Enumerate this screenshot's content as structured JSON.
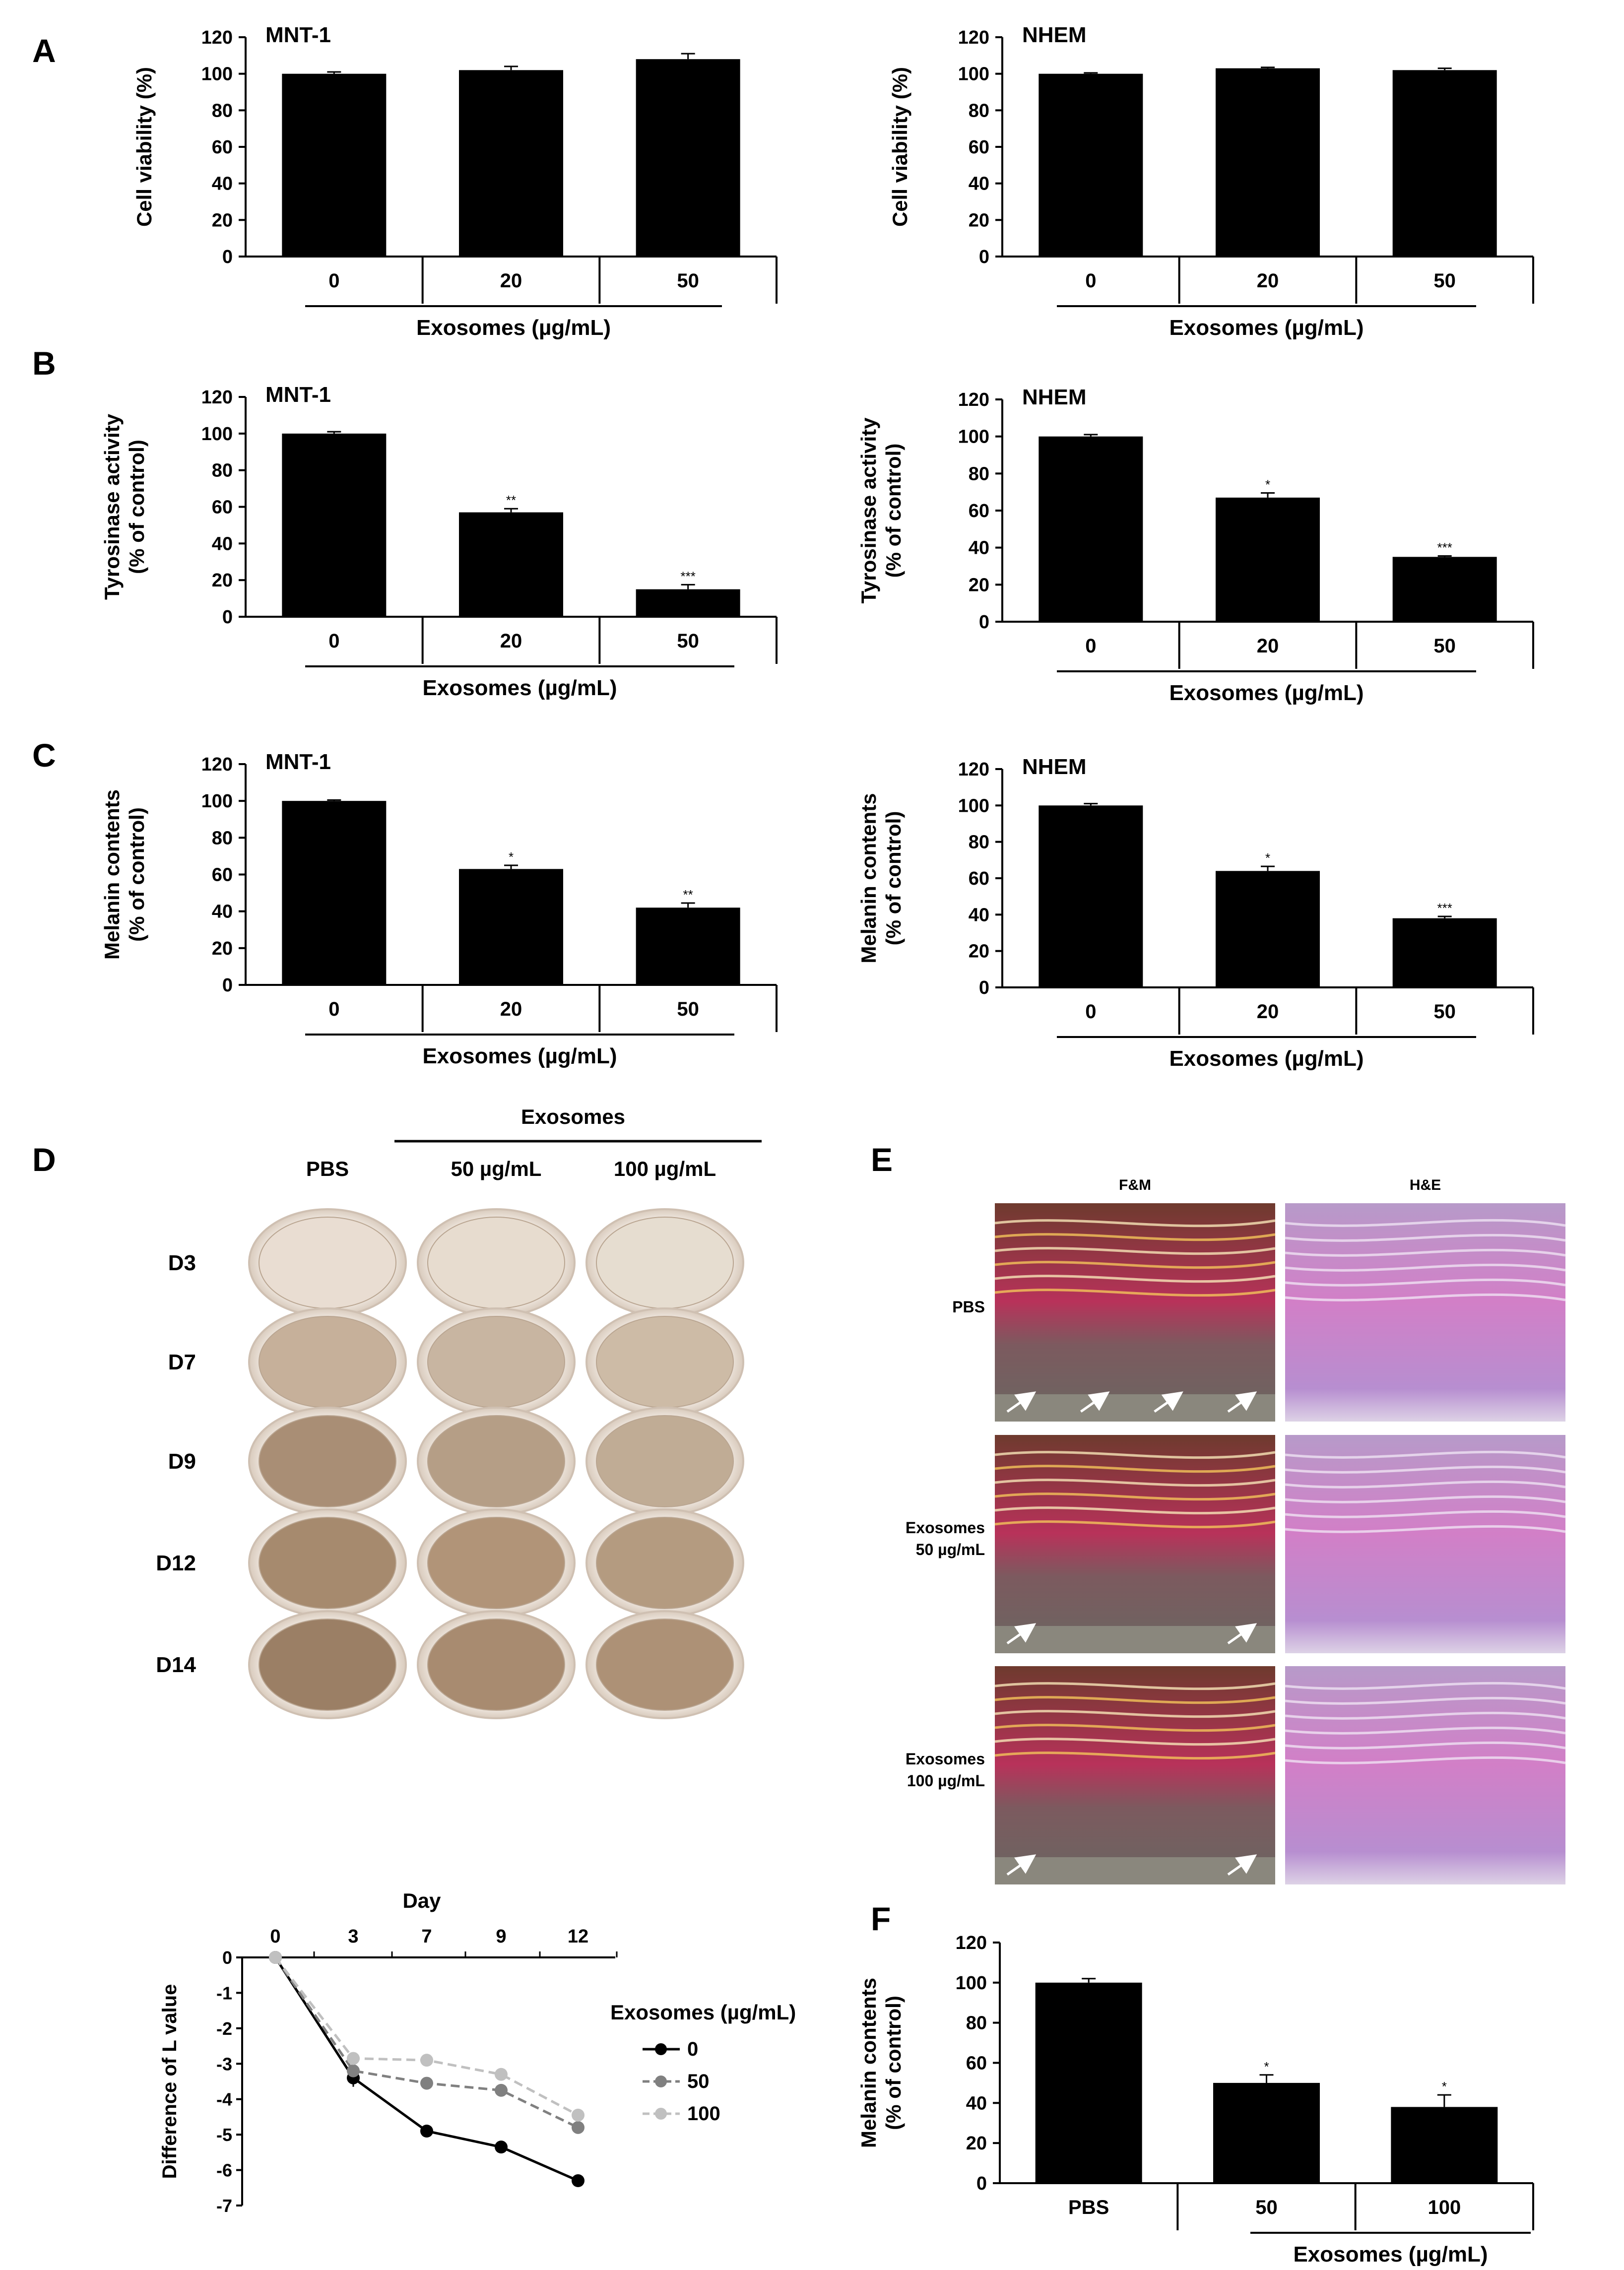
{
  "chart_data": [
    {
      "panel": "A",
      "type": "bar",
      "title": "MNT-1",
      "categories": [
        "0",
        "20",
        "50"
      ],
      "values": [
        100,
        102,
        108
      ],
      "errors": [
        1,
        2,
        3
      ],
      "sig": [
        "",
        "",
        ""
      ],
      "xlabel": "Exosomes (µg/mL)",
      "ylabel": [
        "Cell viability (%)"
      ],
      "ylim": [
        0,
        120
      ],
      "yticks": [
        0,
        20,
        40,
        60,
        80,
        100,
        120
      ]
    },
    {
      "type": "bar",
      "title": "NHEM",
      "categories": [
        "0",
        "20",
        "50"
      ],
      "values": [
        100,
        103,
        102
      ],
      "errors": [
        0.5,
        0.5,
        1
      ],
      "sig": [
        "",
        "",
        ""
      ],
      "xlabel": "Exosomes (µg/mL)",
      "ylabel": [
        "Cell viability (%)"
      ],
      "ylim": [
        0,
        120
      ],
      "yticks": [
        0,
        20,
        40,
        60,
        80,
        100,
        120
      ]
    },
    {
      "panel": "B",
      "type": "bar",
      "title": "MNT-1",
      "categories": [
        "0",
        "20",
        "50"
      ],
      "values": [
        100,
        57,
        15
      ],
      "errors": [
        1,
        2,
        2.5
      ],
      "sig": [
        "",
        "**",
        "***"
      ],
      "xlabel": "Exosomes (µg/mL)",
      "ylabel": [
        "Tyrosinase activity",
        "(% of control)"
      ],
      "ylim": [
        0,
        120
      ],
      "yticks": [
        0,
        20,
        40,
        60,
        80,
        100,
        120
      ]
    },
    {
      "type": "bar",
      "title": "NHEM",
      "categories": [
        "0",
        "20",
        "50"
      ],
      "values": [
        100,
        67,
        35
      ],
      "errors": [
        1,
        2.5,
        0.5
      ],
      "sig": [
        "",
        "*",
        "***"
      ],
      "xlabel": "Exosomes (µg/mL)",
      "ylabel": [
        "Tyrosinase activity",
        "(% of control)"
      ],
      "ylim": [
        0,
        120
      ],
      "yticks": [
        0,
        20,
        40,
        60,
        80,
        100,
        120
      ]
    },
    {
      "panel": "C",
      "type": "bar",
      "title": "MNT-1",
      "categories": [
        "0",
        "20",
        "50"
      ],
      "values": [
        100,
        63,
        42
      ],
      "errors": [
        0.5,
        2,
        2.5
      ],
      "sig": [
        "",
        "*",
        "**"
      ],
      "xlabel": "Exosomes (µg/mL)",
      "ylabel": [
        "Melanin contents",
        "(% of control)"
      ],
      "ylim": [
        0,
        120
      ],
      "yticks": [
        0,
        20,
        40,
        60,
        80,
        100,
        120
      ]
    },
    {
      "type": "bar",
      "title": "NHEM",
      "categories": [
        "0",
        "20",
        "50"
      ],
      "values": [
        100,
        64,
        38
      ],
      "errors": [
        1,
        2.5,
        1
      ],
      "sig": [
        "",
        "*",
        "***"
      ],
      "xlabel": "Exosomes (µg/mL)",
      "ylabel": [
        "Melanin contents",
        "(% of control)"
      ],
      "ylim": [
        0,
        120
      ],
      "yticks": [
        0,
        20,
        40,
        60,
        80,
        100,
        120
      ]
    },
    {
      "type": "line",
      "xlabel": "Day",
      "x": [
        "0",
        "3",
        "7",
        "9",
        "12"
      ],
      "ylabel": "Difference of L value",
      "ylim": [
        -7,
        0
      ],
      "yticks": [
        0,
        -1,
        -2,
        -3,
        -4,
        -5,
        -6,
        -7
      ],
      "legend_title": "Exosomes (µg/mL)",
      "series": [
        {
          "name": "0",
          "values": [
            0,
            -3.4,
            -4.9,
            -5.35,
            -6.3
          ],
          "errors": [
            0,
            0.25,
            0.15,
            0.15,
            0.15
          ],
          "color": "#000000",
          "dash": "solid"
        },
        {
          "name": "50",
          "values": [
            0,
            -3.2,
            -3.55,
            -3.75,
            -4.8
          ],
          "errors": [
            0,
            0.15,
            0.15,
            0.15,
            0.15
          ],
          "color": "#808080",
          "dash": "dashed"
        },
        {
          "name": "100",
          "values": [
            0,
            -2.85,
            -2.9,
            -3.3,
            -4.45
          ],
          "errors": [
            0,
            0.15,
            0.15,
            0.15,
            0.15
          ],
          "color": "#c0c0c0",
          "dash": "dashed"
        }
      ]
    },
    {
      "panel": "F",
      "type": "bar",
      "title": "",
      "categories": [
        "PBS",
        "50",
        "100"
      ],
      "values": [
        100,
        50,
        38
      ],
      "errors": [
        2,
        4,
        6
      ],
      "sig": [
        "",
        "*",
        "*"
      ],
      "xlabel": "Exosomes (µg/mL)",
      "ylabel": [
        "Melanin contents",
        "(% of control)"
      ],
      "ylim": [
        0,
        120
      ],
      "yticks": [
        0,
        20,
        40,
        60,
        80,
        100,
        120
      ]
    }
  ],
  "panel_d": {
    "label": "D",
    "group_header": "Exosomes",
    "columns": [
      "PBS",
      "50 µg/mL",
      "100 µg/mL"
    ],
    "rows": [
      "D3",
      "D7",
      "D9",
      "D12",
      "D14"
    ],
    "dish_colors": [
      [
        "#e9ddd2",
        "#e7dccf",
        "#e6ddd0"
      ],
      [
        "#c6b09a",
        "#c8b5a1",
        "#cdbba6"
      ],
      [
        "#a98e75",
        "#b59e86",
        "#c0ac95"
      ],
      [
        "#a68a6e",
        "#b19478",
        "#b49b80"
      ],
      [
        "#9b7f65",
        "#a88b70",
        "#ad9176"
      ]
    ]
  },
  "panel_e": {
    "label": "E",
    "columns": [
      "F&M",
      "H&E"
    ],
    "rows": [
      [
        "PBS"
      ],
      [
        "Exosomes",
        "50 µg/mL"
      ],
      [
        "Exosomes",
        "100 µg/mL"
      ]
    ]
  }
}
